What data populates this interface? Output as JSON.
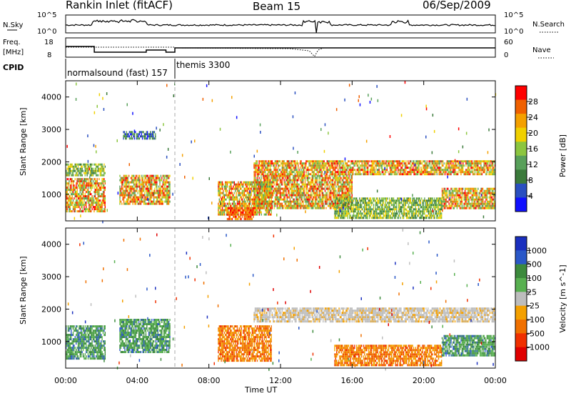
{
  "header": {
    "title": "Rankin Inlet (fitACF)",
    "beam": "Beam 15",
    "date": "06/Sep/2009"
  },
  "noise_panel": {
    "left_label": "N.Sky",
    "right_label": "N.Search",
    "left_ticks": [
      "10^5",
      "10^0"
    ],
    "right_ticks": [
      "10^5",
      "10^0"
    ]
  },
  "freq_panel": {
    "left_label_1": "Freq.",
    "left_label_2": "[MHz]",
    "right_label": "Nave",
    "left_ticks": [
      "18",
      "8"
    ],
    "right_ticks": [
      "60",
      "0"
    ]
  },
  "cpid_panel": {
    "label": "CPID",
    "programs": [
      {
        "name": "normalsound (fast) 157",
        "start_hour": 0,
        "end_hour": 6.1
      },
      {
        "name": "themis 3300",
        "start_hour": 6.1,
        "end_hour": 24
      }
    ]
  },
  "x_axis": {
    "label": "Time UT",
    "ticks": [
      "00:00",
      "04:00",
      "08:00",
      "12:00",
      "16:00",
      "20:00",
      "00:00"
    ]
  },
  "colors": {
    "power_scale": [
      "#1010ff",
      "#2a4fc0",
      "#3b7a3b",
      "#58a05a",
      "#8cc63f",
      "#f0d000",
      "#f4a000",
      "#f06000",
      "#ff0000"
    ],
    "velocity_scale": [
      "#1a2fbf",
      "#2a58c8",
      "#3c8a3c",
      "#58b050",
      "#bdbdbd",
      "#f4a000",
      "#f07000",
      "#f03000",
      "#e00000"
    ]
  },
  "chart_data": [
    {
      "type": "heatmap",
      "panel": "power",
      "ylabel": "Slant Range [km]",
      "yticks": [
        "1000",
        "2000",
        "3000",
        "4000"
      ],
      "ylim": [
        180,
        4500
      ],
      "xlim_hours": [
        0,
        24
      ],
      "colorbar_label": "Power [dB]",
      "colorbar_ticks": [
        "4",
        "8",
        "12",
        "16",
        "20",
        "24",
        "28"
      ],
      "bands": [
        {
          "x": [
            0.0,
            2.2
          ],
          "y": [
            500,
            1500
          ],
          "value": "high"
        },
        {
          "x": [
            0.0,
            2.2
          ],
          "y": [
            1600,
            1950
          ],
          "value": "medium"
        },
        {
          "x": [
            3.0,
            5.8
          ],
          "y": [
            700,
            1600
          ],
          "value": "high"
        },
        {
          "x": [
            3.2,
            5.0
          ],
          "y": [
            2700,
            2950
          ],
          "value": "low"
        },
        {
          "x": [
            8.5,
            11.5
          ],
          "y": [
            400,
            1400
          ],
          "value": "high"
        },
        {
          "x": [
            9.0,
            10.5
          ],
          "y": [
            250,
            600
          ],
          "value": "very high"
        },
        {
          "x": [
            10.5,
            16.0
          ],
          "y": [
            600,
            1600
          ],
          "value": "high"
        },
        {
          "x": [
            10.5,
            24.0
          ],
          "y": [
            1650,
            2050
          ],
          "value": "high"
        },
        {
          "x": [
            15.0,
            21.0
          ],
          "y": [
            250,
            900
          ],
          "value": "medium"
        },
        {
          "x": [
            21.0,
            24.0
          ],
          "y": [
            600,
            1200
          ],
          "value": "high"
        }
      ]
    },
    {
      "type": "heatmap",
      "panel": "velocity",
      "ylabel": "Slant Range [km]",
      "yticks": [
        "1000",
        "2000",
        "3000",
        "4000"
      ],
      "ylim": [
        180,
        4500
      ],
      "xlim_hours": [
        0,
        24
      ],
      "colorbar_label": "Velocity [m s^-1]",
      "colorbar_ticks": [
        "1000",
        "500",
        "100",
        "25",
        "-25",
        "-100",
        "-500",
        "-1000"
      ],
      "bands": [
        {
          "x": [
            0.0,
            2.2
          ],
          "y": [
            500,
            1500
          ],
          "value": "positive"
        },
        {
          "x": [
            3.0,
            5.8
          ],
          "y": [
            700,
            1700
          ],
          "value": "positive"
        },
        {
          "x": [
            8.5,
            11.5
          ],
          "y": [
            400,
            1500
          ],
          "value": "negative"
        },
        {
          "x": [
            10.5,
            24.0
          ],
          "y": [
            1650,
            2050
          ],
          "value": "near zero"
        },
        {
          "x": [
            15.0,
            21.0
          ],
          "y": [
            250,
            900
          ],
          "value": "negative"
        },
        {
          "x": [
            21.0,
            24.0
          ],
          "y": [
            600,
            1200
          ],
          "value": "positive"
        }
      ]
    }
  ]
}
